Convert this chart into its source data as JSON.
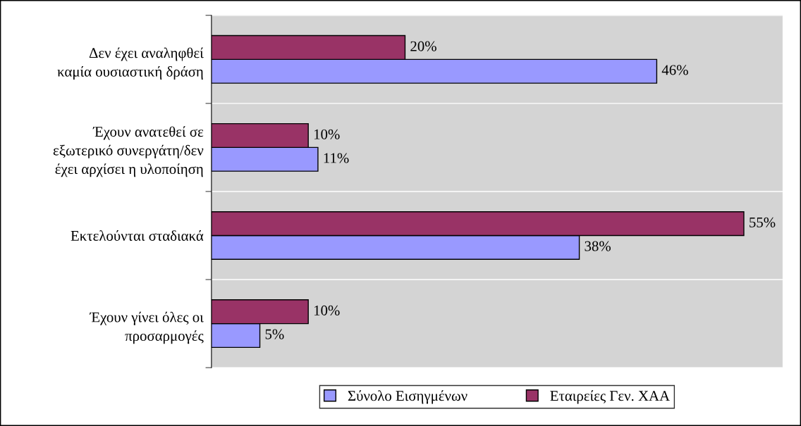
{
  "chart_data": {
    "type": "bar",
    "orientation": "horizontal",
    "categories": [
      "Δεν έχει αναληφθεί\nκαμία ουσιαστική δράση",
      "Έχουν ανατεθεί σε\nεξωτερικό συνεργάτη/δεν\nέχει αρχίσει η υλοποίηση",
      "Εκτελούνται σταδιακά",
      "Έχουν γίνει όλες οι\nπροσαρμογές"
    ],
    "series": [
      {
        "name": "Σύνολο Εισηγμένων",
        "color": "#9999ff",
        "values": [
          46,
          11,
          38,
          5
        ],
        "value_labels": [
          "46%",
          "11%",
          "38%",
          "5%"
        ]
      },
      {
        "name": "Εταιρείες Γεν. ΧΑΑ",
        "color": "#993366",
        "values": [
          20,
          10,
          55,
          10
        ],
        "value_labels": [
          "20%",
          "10%",
          "55%",
          "10%"
        ]
      }
    ],
    "xlim": [
      0,
      59
    ],
    "tick_labels": "y",
    "grid": "y",
    "legend": "bottom"
  }
}
